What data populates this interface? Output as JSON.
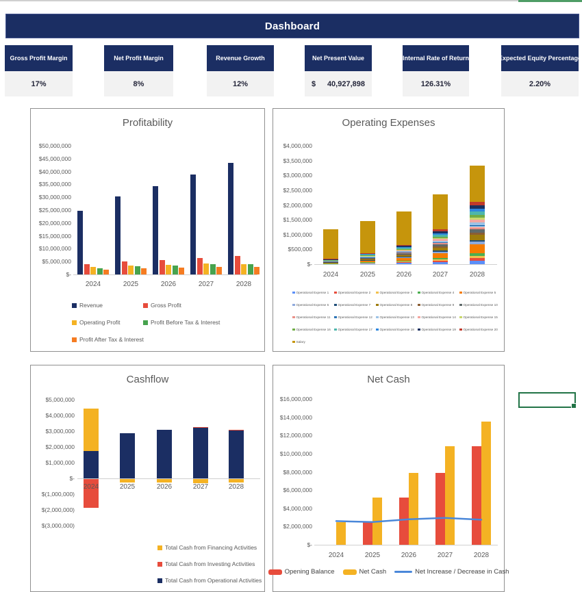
{
  "header": {
    "title": "Dashboard"
  },
  "kpis": [
    {
      "label": "Gross Profit Margin",
      "value": "17%"
    },
    {
      "label": "Net Profit Margin",
      "value": "8%"
    },
    {
      "label": "Revenue Growth",
      "value": "12%"
    },
    {
      "label": "Net Present Value",
      "prefix": "$",
      "value": "40,927,898"
    },
    {
      "label": "Internal Rate of Return",
      "value": "126.31%"
    },
    {
      "label": "Expected Equity Percentage",
      "value": "2.20%"
    }
  ],
  "colors": {
    "navy": "#1b2e63",
    "red": "#e74c3c",
    "gold": "#f4b223",
    "green": "#47a34e",
    "orange": "#f57c22",
    "salary_gold": "#c6950c",
    "line_blue": "#4a87d9",
    "title_gray": "#595959",
    "selection_green": "#217346",
    "kpi_value_bg": "#f2f2f2"
  },
  "chart_data": [
    {
      "id": "profitability",
      "type": "bar",
      "title": "Profitability",
      "categories": [
        "2024",
        "2025",
        "2026",
        "2027",
        "2028"
      ],
      "series": [
        {
          "name": "Revenue",
          "color": "#1b2e63",
          "values": [
            24800000,
            30200000,
            34200000,
            38700000,
            43400000
          ]
        },
        {
          "name": "Gross Profit",
          "color": "#e74c3c",
          "values": [
            4000000,
            5000000,
            5600000,
            6400000,
            7200000
          ]
        },
        {
          "name": "Operating Profit",
          "color": "#f4b223",
          "values": [
            3000000,
            3500000,
            3800000,
            4200000,
            3900000
          ]
        },
        {
          "name": "Profit Before Tax & Interest",
          "color": "#47a34e",
          "values": [
            2500000,
            3200000,
            3500000,
            3900000,
            3900000
          ]
        },
        {
          "name": "Profit After Tax & Interest",
          "color": "#f57c22",
          "values": [
            1900000,
            2300000,
            2700000,
            3000000,
            3000000
          ]
        }
      ],
      "ylim": [
        0,
        50000000
      ],
      "ytick": 5000000,
      "grid": false,
      "legend_position": "bottom"
    },
    {
      "id": "operating-expenses",
      "type": "bar",
      "stacked": true,
      "title": "Operating Expenses",
      "categories": [
        "2024",
        "2025",
        "2026",
        "2027",
        "2028"
      ],
      "series": [
        {
          "name": "Operational Expense 1",
          "color": "#5b8ff9",
          "values": [
            10800,
            22800,
            39000,
            70800,
            126000
          ]
        },
        {
          "name": "Operational Expense 2",
          "color": "#e74c3c",
          "values": [
            7200,
            15200,
            26000,
            47200,
            84000
          ]
        },
        {
          "name": "Operational Expense 3",
          "color": "#f2c14e",
          "values": [
            5400,
            11400,
            19500,
            35400,
            63000
          ]
        },
        {
          "name": "Operational Expense 4",
          "color": "#4caf50",
          "values": [
            9000,
            19000,
            32500,
            59000,
            105000
          ]
        },
        {
          "name": "Operational Expense 5",
          "color": "#f57c00",
          "values": [
            25200,
            53200,
            91000,
            165200,
            294000
          ]
        },
        {
          "name": "Operational Expense 6",
          "color": "#8faadc",
          "values": [
            7200,
            15200,
            26000,
            47200,
            84000
          ]
        },
        {
          "name": "Operational Expense 7",
          "color": "#1f4e79",
          "values": [
            5400,
            11400,
            19500,
            35400,
            63000
          ]
        },
        {
          "name": "Operational Expense 8",
          "color": "#9e7c0c",
          "values": [
            14400,
            30400,
            52000,
            94400,
            168000
          ]
        },
        {
          "name": "Operational Expense 9",
          "color": "#8b5e34",
          "values": [
            7200,
            15200,
            26000,
            47200,
            84000
          ]
        },
        {
          "name": "Operational Expense 10",
          "color": "#5f6a6a",
          "values": [
            9000,
            19000,
            32500,
            59000,
            105000
          ]
        },
        {
          "name": "Operational Expense 11",
          "color": "#e99088",
          "values": [
            7200,
            15200,
            26000,
            47200,
            84000
          ]
        },
        {
          "name": "Operational Expense 12",
          "color": "#2e75b6",
          "values": [
            5400,
            11400,
            19500,
            35400,
            63000
          ]
        },
        {
          "name": "Operational Expense 13",
          "color": "#9dc3e6",
          "values": [
            7200,
            15200,
            26000,
            47200,
            84000
          ]
        },
        {
          "name": "Operational Expense 14",
          "color": "#f4a6a0",
          "values": [
            9000,
            19000,
            32500,
            59000,
            105000
          ]
        },
        {
          "name": "Operational Expense 15",
          "color": "#c9d86d",
          "values": [
            5400,
            11400,
            19500,
            35400,
            63000
          ]
        },
        {
          "name": "Operational Expense 16",
          "color": "#70ad47",
          "values": [
            7200,
            15200,
            26000,
            47200,
            84000
          ]
        },
        {
          "name": "Operational Expense 17",
          "color": "#4db6ac",
          "values": [
            10800,
            22800,
            39000,
            70800,
            126000
          ]
        },
        {
          "name": "Operational Expense 18",
          "color": "#2e86de",
          "values": [
            7200,
            15200,
            26000,
            47200,
            84000
          ]
        },
        {
          "name": "Operational Expense 19",
          "color": "#1b3160",
          "values": [
            10800,
            22800,
            39000,
            70800,
            126000
          ]
        },
        {
          "name": "Operational Expense 20",
          "color": "#c0392b",
          "values": [
            9000,
            19000,
            32500,
            59000,
            105000
          ]
        },
        {
          "name": "Salary",
          "color": "#c6950c",
          "values": [
            990000,
            1070000,
            1120000,
            1180000,
            1230000
          ]
        }
      ],
      "ylim": [
        0,
        4000000
      ],
      "ytick": 500000,
      "grid": false,
      "legend_position": "bottom"
    },
    {
      "id": "cashflow",
      "type": "bar",
      "stacked": true,
      "title": "Cashflow",
      "categories": [
        "2024",
        "2025",
        "2026",
        "2027",
        "2028"
      ],
      "series": [
        {
          "name": "Total Cash from Operational Activities",
          "color": "#1b2e63",
          "values": [
            1750000,
            2850000,
            3100000,
            3200000,
            3050000
          ]
        },
        {
          "name": "Total Cash from Investing Activities",
          "color": "#e74c3c",
          "values": [
            -1850000,
            0,
            0,
            70000,
            50000
          ]
        },
        {
          "name": "Total Cash from Financing Activities",
          "color": "#f4b223",
          "values": [
            2700000,
            -280000,
            -280000,
            -300000,
            -280000
          ]
        }
      ],
      "legend_order": [
        2,
        1,
        0
      ],
      "ylim": [
        -3000000,
        5000000
      ],
      "ytick": 1000000,
      "grid": false,
      "legend_position": "bottom"
    },
    {
      "id": "net-cash",
      "type": "bar",
      "title": "Net Cash",
      "categories": [
        "2024",
        "2025",
        "2026",
        "2027",
        "2028"
      ],
      "series": [
        {
          "name": "Opening Balance",
          "kind": "bar",
          "color": "#e74c3c",
          "values": [
            0,
            2500000,
            5150000,
            7900000,
            10850000
          ]
        },
        {
          "name": "Net Cash",
          "kind": "bar",
          "color": "#f4b223",
          "values": [
            2500000,
            5150000,
            7900000,
            10850000,
            13550000
          ]
        },
        {
          "name": "Net Increase / Decrease in Cash",
          "kind": "line",
          "color": "#4a87d9",
          "values": [
            2600000,
            2500000,
            2800000,
            2950000,
            2750000
          ]
        }
      ],
      "ylim": [
        0,
        16000000
      ],
      "ytick": 2000000,
      "grid": false,
      "legend_position": "bottom"
    }
  ]
}
